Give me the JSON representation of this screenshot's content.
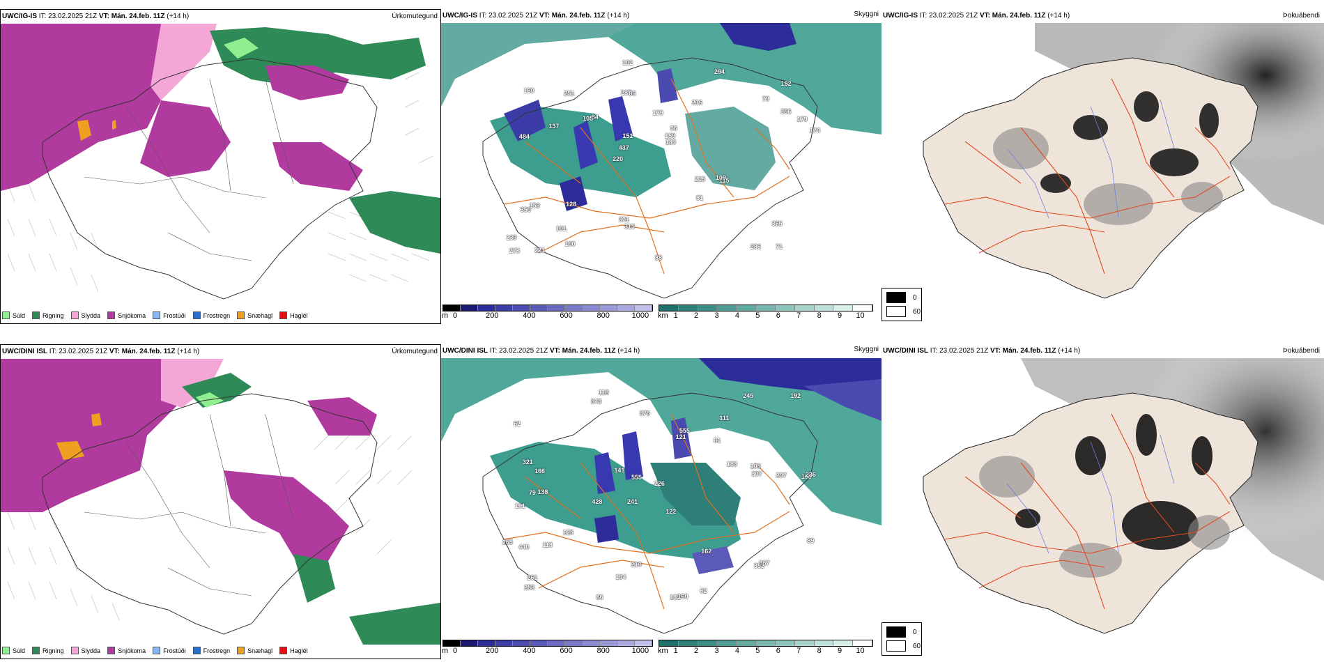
{
  "rows": [
    {
      "model": "UWC/IG-IS",
      "it_label": "IT:",
      "it_value": "23.02.2025 21Z",
      "vt_label": "VT:",
      "vt_value": "Mán. 24.feb. 11Z",
      "lead": "(+14 h)",
      "height_labels": [
        "71",
        "484",
        "182",
        "220",
        "216",
        "221",
        "287",
        "179",
        "153",
        "84",
        "139",
        "101",
        "86",
        "96",
        "115",
        "130",
        "102",
        "174",
        "215",
        "256",
        "437",
        "301",
        "151",
        "251",
        "294",
        "128",
        "286",
        "365",
        "109",
        "88",
        "105",
        "137",
        "81",
        "100",
        "179",
        "159",
        "273",
        "315",
        "189",
        "350",
        "79"
      ],
      "cloud_labels_hint": ""
    },
    {
      "model": "UWC/DINI ISL",
      "it_label": "IT:",
      "it_value": "23.02.2025 21Z",
      "vt_label": "VT:",
      "vt_value": "Mán. 24.feb. 11Z",
      "lead": "(+14 h)",
      "height_labels": [
        "118",
        "111",
        "108",
        "241",
        "122",
        "138",
        "62",
        "81",
        "191",
        "121",
        "226",
        "258",
        "843",
        "428",
        "182",
        "160",
        "210",
        "245",
        "183",
        "125",
        "166",
        "79",
        "236",
        "297",
        "255",
        "321",
        "555",
        "307",
        "367",
        "440",
        "352",
        "555",
        "118",
        "141",
        "162",
        "89",
        "105",
        "194",
        "192",
        "376",
        "261",
        "86",
        "62"
      ],
      "cloud_labels_hint": ""
    }
  ],
  "panel_titles": {
    "precip": "Úrkomutegund",
    "visibility": "Skyggni",
    "fog": "Þokuábendi"
  },
  "precip_legend": [
    {
      "label": "Súld",
      "color": "#90ee90"
    },
    {
      "label": "Rigning",
      "color": "#2e8b57"
    },
    {
      "label": "Slydda",
      "color": "#f4a6d7"
    },
    {
      "label": "Snjókoma",
      "color": "#b03a9e"
    },
    {
      "label": "Frostúði",
      "color": "#87b6f0"
    },
    {
      "label": "Frostregn",
      "color": "#2a6fc9"
    },
    {
      "label": "Snæhagl",
      "color": "#f0a020"
    },
    {
      "label": "Haglél",
      "color": "#e01010"
    }
  ],
  "height_bar": {
    "unit": "m",
    "ticks": [
      "0",
      "200",
      "400",
      "600",
      "800",
      "1000"
    ],
    "colors": [
      "#000000",
      "#1a1a70",
      "#2c2c9a",
      "#3c3ca8",
      "#4a4ab0",
      "#5a5ab8",
      "#6a6ac0",
      "#7a7ac8",
      "#8a8ad0",
      "#9a9ad8",
      "#aaaae0",
      "#c0c0ea"
    ]
  },
  "vis_bar": {
    "unit": "km",
    "ticks": [
      "1",
      "2",
      "3",
      "4",
      "5",
      "6",
      "7",
      "8",
      "9",
      "10"
    ],
    "colors": [
      "#1f6f6a",
      "#2e7f78",
      "#3d8e86",
      "#4f9c94",
      "#63aaa2",
      "#78b8b0",
      "#8ec6be",
      "#a6d4cc",
      "#bfe2da",
      "#d8eee8",
      "#ffffff"
    ]
  },
  "fog_legend": {
    "high": "0",
    "low": "60",
    "high_color": "#000000",
    "low_color": "#ffffff"
  },
  "colors": {
    "snow": "#b03a9e",
    "rain": "#2e8b57",
    "drizzle": "#90ee90",
    "sleet": "#f4a6d7",
    "vis_teal": "#3d9e90",
    "low_cloud": "#3838b0",
    "roads": "#e07020",
    "land": "#efe4da"
  }
}
